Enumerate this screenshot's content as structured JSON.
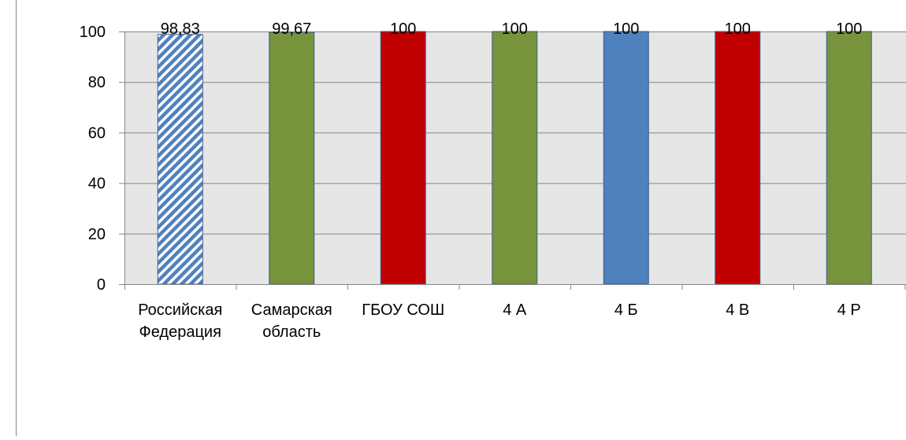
{
  "chart_data": {
    "type": "bar",
    "categories": [
      [
        "Российская",
        "Федерация"
      ],
      [
        "Самарская",
        "область"
      ],
      [
        "ГБОУ СОШ"
      ],
      [
        "4 А"
      ],
      [
        "4 Б"
      ],
      [
        "4 В"
      ],
      [
        "4 Р"
      ]
    ],
    "values": [
      98.83,
      99.67,
      100,
      100,
      100,
      100,
      100
    ],
    "value_labels": [
      "98,83",
      "99,67",
      "100",
      "100",
      "100",
      "100",
      "100"
    ],
    "bar_fills": [
      "pattern-blue-diagonal",
      "#77933C",
      "#C00000",
      "#77933C",
      "#4F81BD",
      "#C00000",
      "#77933C"
    ],
    "y_ticks": [
      "0",
      "20",
      "40",
      "60",
      "80",
      "100"
    ],
    "ylim": [
      0,
      100
    ],
    "grid": true,
    "colors": {
      "plot_background": "#E6E6E6",
      "gridline": "#868686",
      "axis": "#868686",
      "bar_border": "#3E5E8F",
      "pattern_blue": "#4F81BD"
    }
  }
}
